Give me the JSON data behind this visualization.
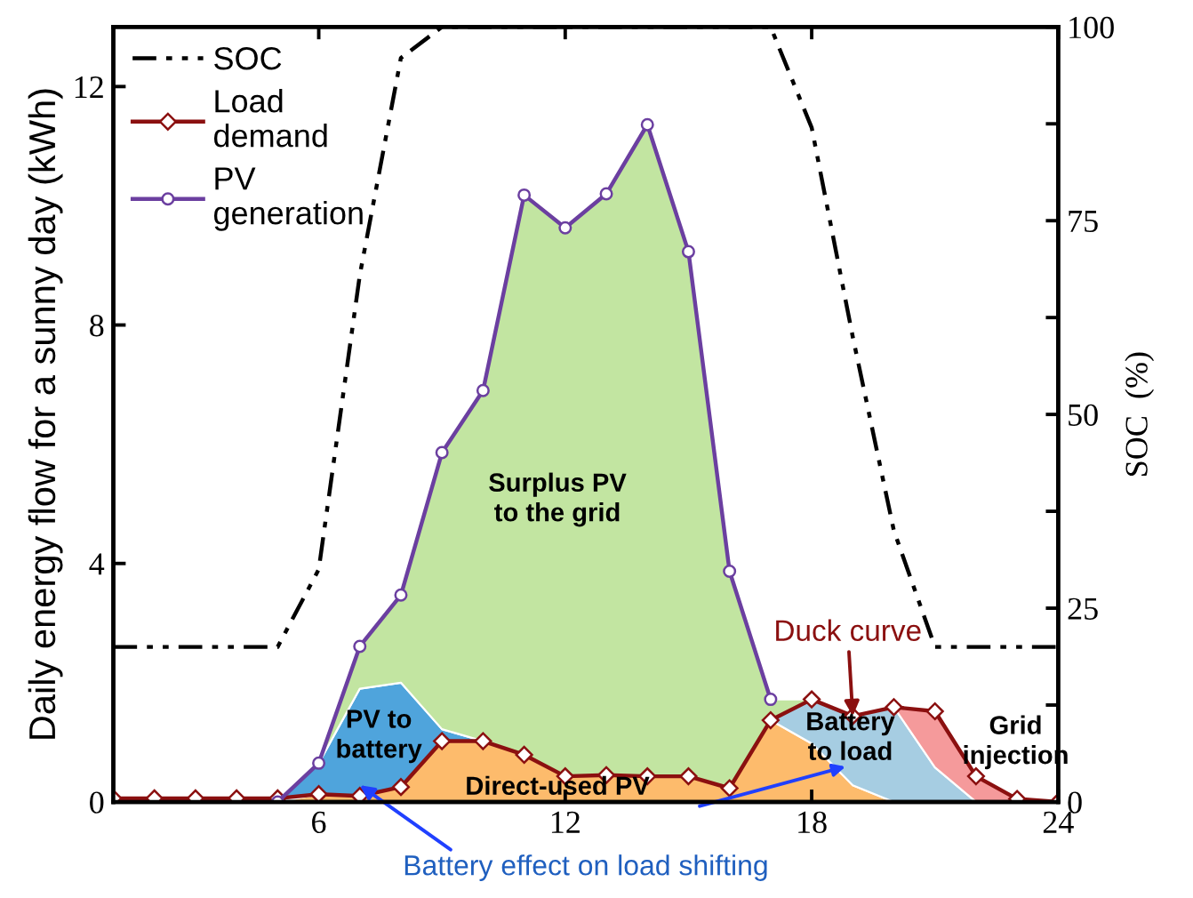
{
  "chart_data": {
    "type": "area",
    "stacked": true,
    "ylabel": "Daily energy flow for a sunny day (kWh)",
    "y2label": "SOC  (%)",
    "x": [
      1,
      2,
      3,
      4,
      5,
      6,
      7,
      8,
      9,
      10,
      11,
      12,
      13,
      14,
      15,
      16,
      17,
      18,
      19,
      20,
      21,
      22,
      23,
      24
    ],
    "xlim": [
      1,
      24
    ],
    "xticks": [
      6,
      12,
      18,
      24
    ],
    "ylim": [
      0,
      13
    ],
    "yticks": [
      0,
      4,
      8,
      12
    ],
    "y2lim": [
      0,
      100
    ],
    "y2ticks": [
      0,
      {
        "value": 12.5,
        "label": null
      },
      25,
      {
        "value": 37.5,
        "label": null
      },
      50,
      {
        "value": 62.5,
        "label": null
      },
      75,
      {
        "value": 87.5,
        "label": null
      },
      100
    ],
    "grid": false,
    "legend": "top left",
    "series": [
      {
        "color": "#fdbb6c",
        "values": [
          null,
          null,
          null,
          null,
          0,
          0.13,
          0.1,
          0.25,
          1.02,
          1.02,
          0.79,
          0.43,
          0.45,
          0.43,
          0.43,
          0.23,
          1.37,
          0.98,
          0.28,
          0,
          null,
          null,
          null,
          null
        ]
      },
      {
        "color": "#a6cde2",
        "values": [
          null,
          null,
          null,
          null,
          null,
          null,
          null,
          null,
          null,
          null,
          null,
          null,
          null,
          null,
          null,
          null,
          0,
          0.74,
          1.16,
          1.59,
          0.58,
          0,
          null,
          null
        ]
      },
      {
        "color": "#f59a9b",
        "values": [
          null,
          null,
          null,
          null,
          null,
          null,
          null,
          null,
          null,
          null,
          null,
          null,
          null,
          null,
          null,
          null,
          null,
          null,
          null,
          0,
          0.94,
          0.43,
          0.05,
          0
        ]
      },
      {
        "color": "#4fa4dc",
        "values": [
          null,
          null,
          null,
          null,
          0,
          0.52,
          1.8,
          1.75,
          0.2,
          0,
          null,
          null,
          null,
          null,
          null,
          null,
          null,
          null,
          null,
          null,
          null,
          null,
          null,
          null
        ]
      },
      {
        "color": "#c2e5a1",
        "values": [
          null,
          null,
          null,
          null,
          null,
          0,
          0.71,
          1.47,
          4.64,
          5.88,
          9.39,
          9.2,
          9.75,
          10.93,
          8.8,
          3.64,
          0.35,
          0,
          null,
          null,
          null,
          null,
          null,
          null
        ]
      },
      {
        "type": "line",
        "name": "SOC",
        "color": "#000000",
        "axis": "y2",
        "marker": "none",
        "line_style": "dashed",
        "values": [
          20,
          20,
          20,
          20,
          20,
          30,
          68,
          96,
          100,
          100,
          100,
          100,
          100,
          100,
          100,
          100,
          100,
          87,
          60,
          35,
          20,
          20,
          20,
          20
        ]
      },
      {
        "type": "line",
        "name": "Load demand",
        "color": "#8b1010",
        "marker": "diamond",
        "line_style": "solid",
        "values": [
          0.06,
          0.06,
          0.06,
          0.06,
          0.06,
          0.13,
          0.1,
          0.25,
          1.02,
          1.02,
          0.79,
          0.43,
          0.45,
          0.43,
          0.43,
          0.23,
          1.37,
          1.72,
          1.44,
          1.59,
          1.52,
          0.43,
          0.05,
          0
        ]
      },
      {
        "type": "line",
        "name": "PV generation",
        "color": "#6b3fa0",
        "marker": "circle",
        "line_style": "solid",
        "values": [
          null,
          null,
          null,
          null,
          0,
          0.65,
          2.61,
          3.47,
          5.86,
          6.9,
          10.18,
          9.63,
          10.2,
          11.36,
          9.23,
          3.87,
          1.72,
          null,
          null,
          null,
          null,
          null,
          null,
          null
        ]
      }
    ],
    "annotations": [
      "Surplus PV\nto the grid",
      "PV to\nbattery",
      "Direct-used PV",
      "Battery\nto load",
      "Grid\ninjection",
      {
        "text": "Duck curve",
        "x": 19,
        "y": 1.44
      },
      {
        "text": "Battery effect on load shifting",
        "x": 7,
        "y": 0.28
      }
    ]
  }
}
